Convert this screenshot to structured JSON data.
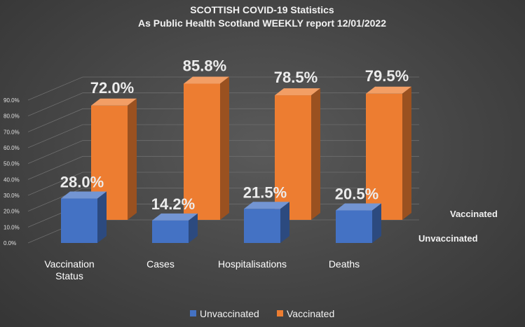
{
  "chart_data": {
    "type": "bar",
    "title": "SCOTTISH COVID-19 Statistics",
    "subtitle": "As Public Health Scotland WEEKLY report 12/01/2022",
    "categories": [
      "Vaccination Status",
      "Cases",
      "Hospitalisations",
      "Deaths"
    ],
    "series": [
      {
        "name": "Unvaccinated",
        "values": [
          28.0,
          14.2,
          21.5,
          20.5
        ],
        "labels": [
          "28.0%",
          "14.2%",
          "21.5%",
          "20.5%"
        ],
        "color": "#4472c4"
      },
      {
        "name": "Vaccinated",
        "values": [
          72.0,
          85.8,
          78.5,
          79.5
        ],
        "labels": [
          "72.0%",
          "85.8%",
          "78.5%",
          "79.5%"
        ],
        "color": "#ed7d31"
      }
    ],
    "ylim": [
      0,
      90
    ],
    "yticks": [
      "0.0%",
      "10.0%",
      "20.0%",
      "30.0%",
      "40.0%",
      "50.0%",
      "60.0%",
      "70.0%",
      "80.0%",
      "90.0%"
    ],
    "grid": true,
    "depth_labels": [
      "Vaccinated",
      "Unvaccinated"
    ],
    "legend": {
      "position": "bottom",
      "items": [
        "Unvaccinated",
        "Vaccinated"
      ]
    }
  }
}
